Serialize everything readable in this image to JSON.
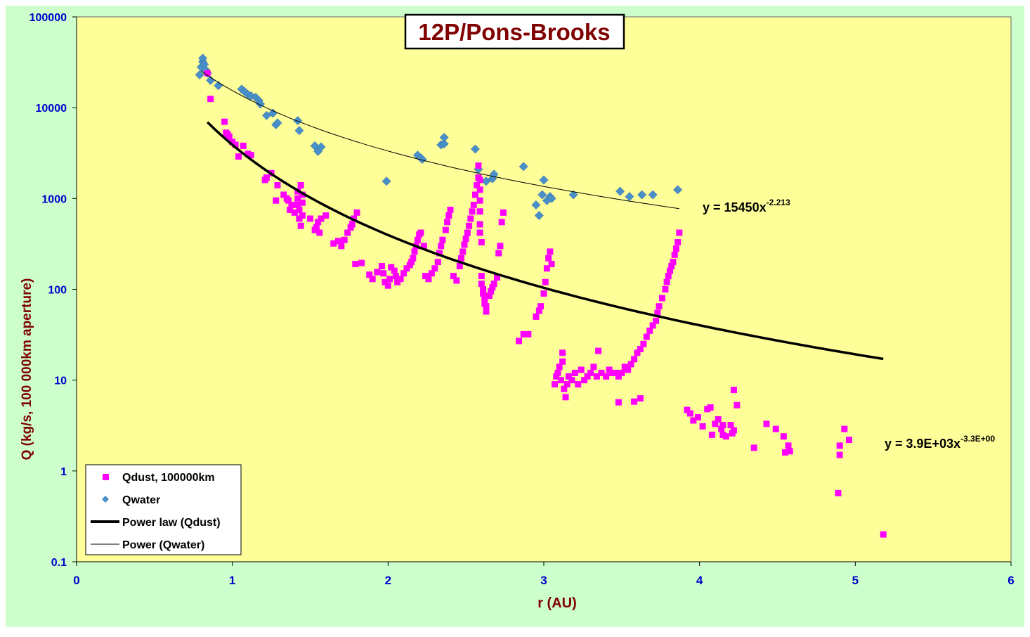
{
  "chart_data": {
    "type": "scatter",
    "title": "12P/Pons-Brooks",
    "xlabel": "r (AU)",
    "ylabel": "Q (kg/s, 100 000km aperture)",
    "xlim": [
      0,
      6
    ],
    "ylim": [
      0.1,
      100000
    ],
    "yscale": "log",
    "xticks": [
      "0",
      "1",
      "2",
      "3",
      "4",
      "5",
      "6"
    ],
    "yticks": [
      "0.1",
      "1",
      "10",
      "100",
      "1000",
      "10000",
      "100000"
    ],
    "grid": false,
    "legend_position": "bottom-left",
    "colors": {
      "outer_background": "#ccffcc",
      "plot_background": "#ffff99",
      "title_color": "#800000",
      "axis_label_color": "#800000",
      "tick_label_color": "#0000cc",
      "qdust": "#ff00ff",
      "qwater": "#4a90c8",
      "fit_line": "#000000"
    },
    "legend": [
      {
        "label": "Qdust, 100000km",
        "marker": "square",
        "color": "#ff00ff"
      },
      {
        "label": "Qwater",
        "marker": "diamond",
        "color": "#4a90c8"
      },
      {
        "label": "Power law (Qdust)",
        "marker": "thick-line",
        "color": "#000000"
      },
      {
        "label": "Power (Qwater)",
        "marker": "thin-line",
        "color": "#000000"
      }
    ],
    "annotations": {
      "water_fit_base": "y = 15450x",
      "water_fit_exp": "-2.213",
      "dust_fit_base": "y = 3.9E+03x",
      "dust_fit_exp": "-3.3E+00"
    },
    "fits": [
      {
        "name": "Power law (Qdust)",
        "a": 3900,
        "b": -3.3,
        "x_range": [
          0.84,
          5.18
        ],
        "weight": "thick"
      },
      {
        "name": "Power (Qwater)",
        "a": 15450,
        "b": -2.213,
        "x_range": [
          0.8,
          3.87
        ],
        "weight": "thin"
      }
    ],
    "series": [
      {
        "name": "Qwater",
        "marker": "diamond",
        "points": [
          [
            0.79,
            23000
          ],
          [
            0.8,
            28000
          ],
          [
            0.81,
            32000
          ],
          [
            0.81,
            35000
          ],
          [
            0.82,
            30000
          ],
          [
            0.83,
            26000
          ],
          [
            0.84,
            24000
          ],
          [
            0.86,
            20000
          ],
          [
            0.91,
            17500
          ],
          [
            1.06,
            16000
          ],
          [
            1.08,
            15000
          ],
          [
            1.1,
            14000
          ],
          [
            1.12,
            13500
          ],
          [
            1.15,
            13000
          ],
          [
            1.17,
            12000
          ],
          [
            1.18,
            11000
          ],
          [
            1.22,
            8200
          ],
          [
            1.26,
            8700
          ],
          [
            1.28,
            6500
          ],
          [
            1.29,
            6800
          ],
          [
            1.42,
            7200
          ],
          [
            1.43,
            5600
          ],
          [
            1.53,
            3800
          ],
          [
            1.55,
            3300
          ],
          [
            1.57,
            3700
          ],
          [
            1.99,
            1550
          ],
          [
            2.19,
            3000
          ],
          [
            2.21,
            2800
          ],
          [
            2.22,
            2700
          ],
          [
            2.34,
            3900
          ],
          [
            2.36,
            4000
          ],
          [
            2.36,
            4700
          ],
          [
            2.56,
            3500
          ],
          [
            2.58,
            2100
          ],
          [
            2.63,
            1550
          ],
          [
            2.67,
            1650
          ],
          [
            2.68,
            1850
          ],
          [
            2.87,
            2250
          ],
          [
            2.95,
            850
          ],
          [
            2.97,
            650
          ],
          [
            2.99,
            1100
          ],
          [
            3.0,
            1600
          ],
          [
            3.02,
            950
          ],
          [
            3.04,
            1050
          ],
          [
            3.05,
            1000
          ],
          [
            3.19,
            1100
          ],
          [
            3.49,
            1200
          ],
          [
            3.55,
            1050
          ],
          [
            3.63,
            1100
          ],
          [
            3.7,
            1100
          ],
          [
            3.86,
            1250
          ]
        ]
      },
      {
        "name": "Qdust, 100000km",
        "marker": "square",
        "points": [
          [
            0.84,
            24000
          ],
          [
            0.86,
            12500
          ],
          [
            0.95,
            7000
          ],
          [
            0.96,
            5300
          ],
          [
            0.97,
            5100
          ],
          [
            0.98,
            4800
          ],
          [
            1.0,
            4200
          ],
          [
            1.02,
            3900
          ],
          [
            1.04,
            2900
          ],
          [
            1.07,
            3800
          ],
          [
            1.1,
            3100
          ],
          [
            1.12,
            3000
          ],
          [
            1.21,
            1600
          ],
          [
            1.22,
            1700
          ],
          [
            1.25,
            1900
          ],
          [
            1.28,
            950
          ],
          [
            1.29,
            1400
          ],
          [
            1.33,
            1100
          ],
          [
            1.35,
            1000
          ],
          [
            1.36,
            950
          ],
          [
            1.37,
            750
          ],
          [
            1.38,
            850
          ],
          [
            1.4,
            700
          ],
          [
            1.42,
            1000
          ],
          [
            1.42,
            1200
          ],
          [
            1.42,
            850
          ],
          [
            1.43,
            600
          ],
          [
            1.43,
            750
          ],
          [
            1.44,
            1400
          ],
          [
            1.44,
            500
          ],
          [
            1.45,
            1100
          ],
          [
            1.45,
            900
          ],
          [
            1.45,
            650
          ],
          [
            1.5,
            600
          ],
          [
            1.53,
            450
          ],
          [
            1.54,
            480
          ],
          [
            1.55,
            550
          ],
          [
            1.56,
            420
          ],
          [
            1.57,
            600
          ],
          [
            1.6,
            650
          ],
          [
            1.65,
            320
          ],
          [
            1.68,
            340
          ],
          [
            1.7,
            300
          ],
          [
            1.72,
            350
          ],
          [
            1.74,
            420
          ],
          [
            1.76,
            480
          ],
          [
            1.77,
            520
          ],
          [
            1.78,
            600
          ],
          [
            1.8,
            700
          ],
          [
            1.79,
            190
          ],
          [
            1.83,
            195
          ],
          [
            1.88,
            145
          ],
          [
            1.9,
            130
          ],
          [
            1.93,
            155
          ],
          [
            1.96,
            180
          ],
          [
            1.97,
            150
          ],
          [
            1.98,
            120
          ],
          [
            2.0,
            110
          ],
          [
            2.01,
            130
          ],
          [
            2.02,
            175
          ],
          [
            2.04,
            160
          ],
          [
            2.05,
            140
          ],
          [
            2.06,
            120
          ],
          [
            2.08,
            130
          ],
          [
            2.1,
            150
          ],
          [
            2.12,
            170
          ],
          [
            2.14,
            185
          ],
          [
            2.15,
            200
          ],
          [
            2.16,
            220
          ],
          [
            2.17,
            260
          ],
          [
            2.18,
            300
          ],
          [
            2.19,
            350
          ],
          [
            2.2,
            400
          ],
          [
            2.21,
            420
          ],
          [
            2.23,
            300
          ],
          [
            2.24,
            140
          ],
          [
            2.26,
            130
          ],
          [
            2.28,
            150
          ],
          [
            2.3,
            170
          ],
          [
            2.32,
            200
          ],
          [
            2.33,
            250
          ],
          [
            2.34,
            300
          ],
          [
            2.35,
            350
          ],
          [
            2.37,
            450
          ],
          [
            2.38,
            550
          ],
          [
            2.39,
            650
          ],
          [
            2.4,
            750
          ],
          [
            2.42,
            140
          ],
          [
            2.44,
            125
          ],
          [
            2.46,
            180
          ],
          [
            2.47,
            220
          ],
          [
            2.48,
            260
          ],
          [
            2.49,
            310
          ],
          [
            2.5,
            360
          ],
          [
            2.51,
            420
          ],
          [
            2.52,
            500
          ],
          [
            2.53,
            600
          ],
          [
            2.54,
            720
          ],
          [
            2.55,
            850
          ],
          [
            2.56,
            1100
          ],
          [
            2.57,
            1400
          ],
          [
            2.58,
            1700
          ],
          [
            2.58,
            2300
          ],
          [
            2.59,
            1600
          ],
          [
            2.59,
            1250
          ],
          [
            2.59,
            950
          ],
          [
            2.59,
            720
          ],
          [
            2.59,
            520
          ],
          [
            2.59,
            420
          ],
          [
            2.6,
            330
          ],
          [
            2.6,
            140
          ],
          [
            2.6,
            115
          ],
          [
            2.61,
            100
          ],
          [
            2.61,
            90
          ],
          [
            2.62,
            80
          ],
          [
            2.62,
            70
          ],
          [
            2.63,
            65
          ],
          [
            2.63,
            57
          ],
          [
            2.65,
            85
          ],
          [
            2.66,
            95
          ],
          [
            2.67,
            105
          ],
          [
            2.68,
            115
          ],
          [
            2.7,
            135
          ],
          [
            2.71,
            250
          ],
          [
            2.72,
            300
          ],
          [
            2.73,
            550
          ],
          [
            2.74,
            700
          ],
          [
            2.84,
            27
          ],
          [
            2.87,
            32
          ],
          [
            2.9,
            32
          ],
          [
            2.95,
            50
          ],
          [
            2.97,
            58
          ],
          [
            2.98,
            65
          ],
          [
            3.0,
            90
          ],
          [
            3.01,
            120
          ],
          [
            3.02,
            170
          ],
          [
            3.03,
            220
          ],
          [
            3.04,
            260
          ],
          [
            3.05,
            190
          ],
          [
            3.07,
            9
          ],
          [
            3.08,
            11
          ],
          [
            3.09,
            12
          ],
          [
            3.1,
            14
          ],
          [
            3.11,
            10
          ],
          [
            3.12,
            16
          ],
          [
            3.12,
            20
          ],
          [
            3.13,
            8
          ],
          [
            3.14,
            6.5
          ],
          [
            3.15,
            9
          ],
          [
            3.16,
            11
          ],
          [
            3.18,
            10
          ],
          [
            3.2,
            12
          ],
          [
            3.22,
            9
          ],
          [
            3.24,
            13
          ],
          [
            3.26,
            10
          ],
          [
            3.28,
            11
          ],
          [
            3.3,
            12
          ],
          [
            3.32,
            14
          ],
          [
            3.34,
            11
          ],
          [
            3.35,
            21
          ],
          [
            3.37,
            12
          ],
          [
            3.4,
            11
          ],
          [
            3.42,
            13
          ],
          [
            3.44,
            12
          ],
          [
            3.46,
            12
          ],
          [
            3.48,
            11
          ],
          [
            3.5,
            12
          ],
          [
            3.48,
            5.7
          ],
          [
            3.52,
            14
          ],
          [
            3.54,
            13
          ],
          [
            3.56,
            15
          ],
          [
            3.58,
            17
          ],
          [
            3.58,
            5.8
          ],
          [
            3.6,
            20
          ],
          [
            3.62,
            6.3
          ],
          [
            3.62,
            22
          ],
          [
            3.64,
            25
          ],
          [
            3.66,
            30
          ],
          [
            3.68,
            35
          ],
          [
            3.7,
            40
          ],
          [
            3.72,
            45
          ],
          [
            3.73,
            55
          ],
          [
            3.74,
            65
          ],
          [
            3.76,
            80
          ],
          [
            3.78,
            100
          ],
          [
            3.79,
            120
          ],
          [
            3.8,
            140
          ],
          [
            3.81,
            160
          ],
          [
            3.82,
            180
          ],
          [
            3.83,
            200
          ],
          [
            3.84,
            240
          ],
          [
            3.85,
            280
          ],
          [
            3.86,
            330
          ],
          [
            3.87,
            420
          ],
          [
            3.92,
            4.7
          ],
          [
            3.94,
            4.3
          ],
          [
            3.96,
            3.6
          ],
          [
            3.99,
            3.9
          ],
          [
            4.02,
            3.1
          ],
          [
            4.05,
            4.8
          ],
          [
            4.07,
            5.0
          ],
          [
            4.08,
            2.5
          ],
          [
            4.1,
            3.3
          ],
          [
            4.12,
            3.7
          ],
          [
            4.14,
            2.9
          ],
          [
            4.15,
            3.2
          ],
          [
            4.15,
            2.5
          ],
          [
            4.17,
            2.4
          ],
          [
            4.2,
            3.2
          ],
          [
            4.21,
            2.6
          ],
          [
            4.22,
            2.8
          ],
          [
            4.22,
            7.8
          ],
          [
            4.24,
            5.3
          ],
          [
            4.35,
            1.8
          ],
          [
            4.43,
            3.3
          ],
          [
            4.49,
            2.9
          ],
          [
            4.54,
            2.4
          ],
          [
            4.55,
            1.6
          ],
          [
            4.57,
            1.9
          ],
          [
            4.58,
            1.65
          ],
          [
            4.89,
            0.57
          ],
          [
            4.9,
            1.9
          ],
          [
            4.9,
            1.5
          ],
          [
            4.93,
            2.9
          ],
          [
            4.96,
            2.2
          ],
          [
            5.18,
            0.2
          ]
        ]
      }
    ]
  }
}
